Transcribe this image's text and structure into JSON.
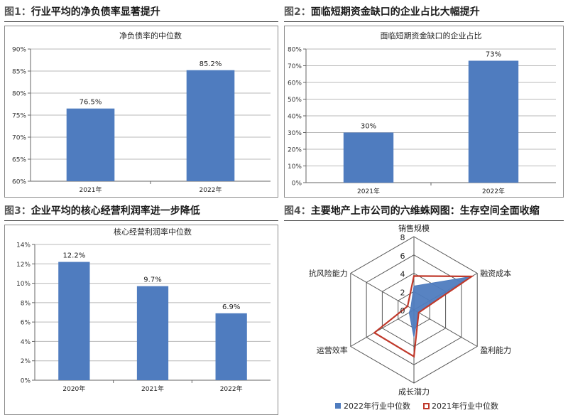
{
  "panels": [
    {
      "id": "p1",
      "title_num": "图1：",
      "title": "行业平均的净负债率显著提升",
      "chart": {
        "type": "bar",
        "title": "净负债率的中位数",
        "categories": [
          "2021年",
          "2022年"
        ],
        "values": [
          76.5,
          85.2
        ],
        "data_labels": [
          "76.5%",
          "85.2%"
        ],
        "ylim": [
          60,
          90
        ],
        "yticks": [
          "60%",
          "65%",
          "70%",
          "75%",
          "80%",
          "85%",
          "90%"
        ],
        "ytick_values": [
          60,
          65,
          70,
          75,
          80,
          85,
          90
        ],
        "color": "#4F7CBF",
        "grid": true
      }
    },
    {
      "id": "p2",
      "title_num": "图2：",
      "title": "面临短期资金缺口的企业占比大幅提升",
      "chart": {
        "type": "bar",
        "title": "面临短期资金缺口的企业占比",
        "categories": [
          "2021年",
          "2022年"
        ],
        "values": [
          30,
          73
        ],
        "data_labels": [
          "30%",
          "73%"
        ],
        "ylim": [
          0,
          80
        ],
        "yticks": [
          "0%",
          "10%",
          "20%",
          "30%",
          "40%",
          "50%",
          "60%",
          "70%",
          "80%"
        ],
        "ytick_values": [
          0,
          10,
          20,
          30,
          40,
          50,
          60,
          70,
          80
        ],
        "color": "#4F7CBF",
        "grid": true
      }
    },
    {
      "id": "p3",
      "title_num": "图3：",
      "title": "企业平均的核心经营利润率进一步降低",
      "chart": {
        "type": "bar",
        "title": "核心经营利润率中位数",
        "categories": [
          "2020年",
          "2021年",
          "2022年"
        ],
        "values": [
          12.2,
          9.7,
          6.9
        ],
        "data_labels": [
          "12.2%",
          "9.7%",
          "6.9%"
        ],
        "ylim": [
          0,
          14
        ],
        "yticks": [
          "0%",
          "2%",
          "4%",
          "6%",
          "8%",
          "10%",
          "12%",
          "14%"
        ],
        "ytick_values": [
          0,
          2,
          4,
          6,
          8,
          10,
          12,
          14
        ],
        "color": "#4F7CBF",
        "grid": true
      }
    },
    {
      "id": "p4",
      "title_num": "图4：",
      "title": "主要地产上市公司的六维蛛网图：生存空间全面收缩",
      "chart": {
        "type": "radar",
        "axes": [
          "销售规模",
          "融资成本",
          "盈利能力",
          "成长潜力",
          "运营效率",
          "抗风险能力"
        ],
        "rlim": [
          0,
          8
        ],
        "rticks": [
          "0",
          "2",
          "4",
          "6",
          "8"
        ],
        "rtick_values": [
          0,
          2,
          4,
          6,
          8
        ],
        "series": [
          {
            "name": "2022年行业中位数",
            "values": [
              2.6,
              7.3,
              0.6,
              3.0,
              0.6,
              0.4
            ],
            "color": "#4F7CBF",
            "fill": true
          },
          {
            "name": "2021年行业中位数",
            "values": [
              3.7,
              7.3,
              0.6,
              5.1,
              5.0,
              0.8
            ],
            "color": "#C0392B",
            "fill": false
          }
        ],
        "legend": "bottom"
      }
    }
  ]
}
